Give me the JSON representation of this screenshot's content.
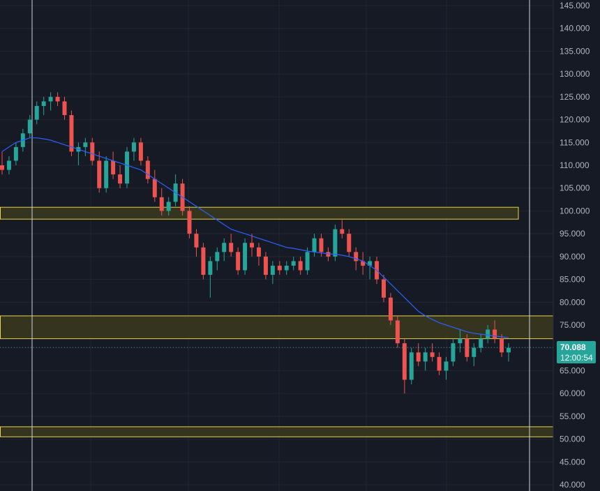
{
  "chart_data": {
    "type": "candlestick",
    "y_axis": {
      "ylim": [
        40,
        146
      ],
      "tick_labels": [
        "145.000",
        "140.000",
        "135.000",
        "130.000",
        "125.000",
        "120.000",
        "115.000",
        "110.000",
        "105.000",
        "100.000",
        "95.000",
        "90.000",
        "85.000",
        "80.000",
        "75.000",
        "70.000",
        "65.000",
        "60.000",
        "55.000",
        "50.000",
        "45.000",
        "40.000"
      ]
    },
    "last_price": {
      "value": "70.088",
      "countdown": "12:00:54",
      "color": "#26a69a"
    },
    "colors": {
      "up": "#26a69a",
      "down": "#ef5350",
      "moving_average": "#2962ff",
      "zone_border": "#e8d44d",
      "zone_fill": "#3b3a1f",
      "background": "#161a25",
      "grid": "#242733"
    },
    "zones": [
      {
        "low": 98.2,
        "high": 100.8,
        "extends_to_axis": false
      },
      {
        "low": 72.0,
        "high": 77.0,
        "extends_to_axis": true
      },
      {
        "low": 50.5,
        "high": 52.7,
        "extends_to_axis": true
      }
    ],
    "vertical_markers": [
      "start-marker",
      "end-marker"
    ],
    "candles": [
      [
        110,
        113,
        108,
        109
      ],
      [
        109,
        112,
        108,
        111
      ],
      [
        111,
        115,
        110,
        114
      ],
      [
        114,
        118,
        113,
        117
      ],
      [
        117,
        121,
        116,
        120
      ],
      [
        120,
        124,
        119,
        123
      ],
      [
        123,
        125,
        121,
        124
      ],
      [
        124,
        126,
        122,
        125
      ],
      [
        125,
        126,
        123,
        124
      ],
      [
        124,
        125,
        120,
        121
      ],
      [
        121,
        122,
        112,
        113
      ],
      [
        113,
        115,
        110,
        114
      ],
      [
        114,
        116,
        112,
        115
      ],
      [
        115,
        116,
        110,
        111
      ],
      [
        111,
        113,
        104,
        105
      ],
      [
        105,
        112,
        104,
        111
      ],
      [
        111,
        113,
        107,
        108
      ],
      [
        108,
        110,
        105,
        106
      ],
      [
        106,
        114,
        105,
        113
      ],
      [
        113,
        116,
        111,
        115
      ],
      [
        115,
        116,
        110,
        111
      ],
      [
        111,
        112,
        106,
        107
      ],
      [
        107,
        109,
        102,
        103
      ],
      [
        103,
        105,
        99,
        100
      ],
      [
        100,
        103,
        99,
        102
      ],
      [
        102,
        108,
        101,
        106
      ],
      [
        106,
        107,
        99,
        100
      ],
      [
        100,
        101,
        94,
        95
      ],
      [
        95,
        96,
        90,
        92
      ],
      [
        92,
        93,
        85,
        86
      ],
      [
        86,
        90,
        81,
        89
      ],
      [
        89,
        92,
        87,
        91
      ],
      [
        91,
        94,
        89,
        93
      ],
      [
        93,
        95,
        90,
        91
      ],
      [
        91,
        92,
        86,
        87
      ],
      [
        87,
        94,
        86,
        93
      ],
      [
        93,
        95,
        90,
        92
      ],
      [
        92,
        93,
        88,
        90
      ],
      [
        90,
        91,
        85,
        86
      ],
      [
        86,
        89,
        84,
        88
      ],
      [
        88,
        89,
        86,
        87
      ],
      [
        87,
        89,
        86,
        88
      ],
      [
        88,
        90,
        87,
        89
      ],
      [
        89,
        90,
        86,
        87
      ],
      [
        87,
        92,
        86,
        91
      ],
      [
        91,
        95,
        90,
        94
      ],
      [
        94,
        95,
        90,
        91
      ],
      [
        91,
        92,
        89,
        90
      ],
      [
        90,
        97,
        89,
        96
      ],
      [
        96,
        98,
        94,
        95
      ],
      [
        95,
        96,
        90,
        91
      ],
      [
        91,
        92,
        87,
        89
      ],
      [
        89,
        91,
        86,
        88
      ],
      [
        88,
        90,
        85,
        89
      ],
      [
        89,
        90,
        84,
        85
      ],
      [
        85,
        86,
        80,
        81
      ],
      [
        81,
        82,
        75,
        76
      ],
      [
        76,
        77,
        70,
        71
      ],
      [
        71,
        72,
        60,
        63
      ],
      [
        63,
        70,
        62,
        69
      ],
      [
        69,
        71,
        66,
        67
      ],
      [
        67,
        70,
        65,
        69
      ],
      [
        69,
        71,
        67,
        68
      ],
      [
        68,
        69,
        64,
        65
      ],
      [
        65,
        68,
        63,
        67
      ],
      [
        67,
        72,
        66,
        71
      ],
      [
        71,
        74,
        69,
        72
      ],
      [
        72,
        73,
        67,
        68
      ],
      [
        68,
        71,
        66,
        70
      ],
      [
        70,
        73,
        69,
        72
      ],
      [
        72,
        75,
        71,
        74
      ],
      [
        74,
        76,
        71,
        72
      ],
      [
        72,
        73,
        68,
        69
      ],
      [
        69,
        71,
        67,
        70
      ]
    ],
    "moving_average": [
      113,
      114,
      115,
      115.5,
      116,
      116,
      115.8,
      115.5,
      115,
      114.5,
      114,
      113.5,
      113,
      112.5,
      112,
      111.5,
      111,
      110.5,
      110,
      109.5,
      109,
      108,
      107,
      106,
      105,
      104,
      103,
      102,
      101,
      100,
      99,
      98,
      97,
      96,
      95.5,
      95,
      94.5,
      94,
      93.5,
      93,
      92.5,
      92,
      91.8,
      91.5,
      91.2,
      91,
      90.8,
      90.6,
      90.5,
      90.3,
      90,
      89.5,
      89,
      88,
      87,
      85.5,
      84,
      82.5,
      81,
      79.5,
      78,
      77,
      76.2,
      75.5,
      75,
      74.5,
      74,
      73.5,
      73.2,
      73,
      72.8,
      72.6,
      72.4,
      72.2
    ]
  }
}
